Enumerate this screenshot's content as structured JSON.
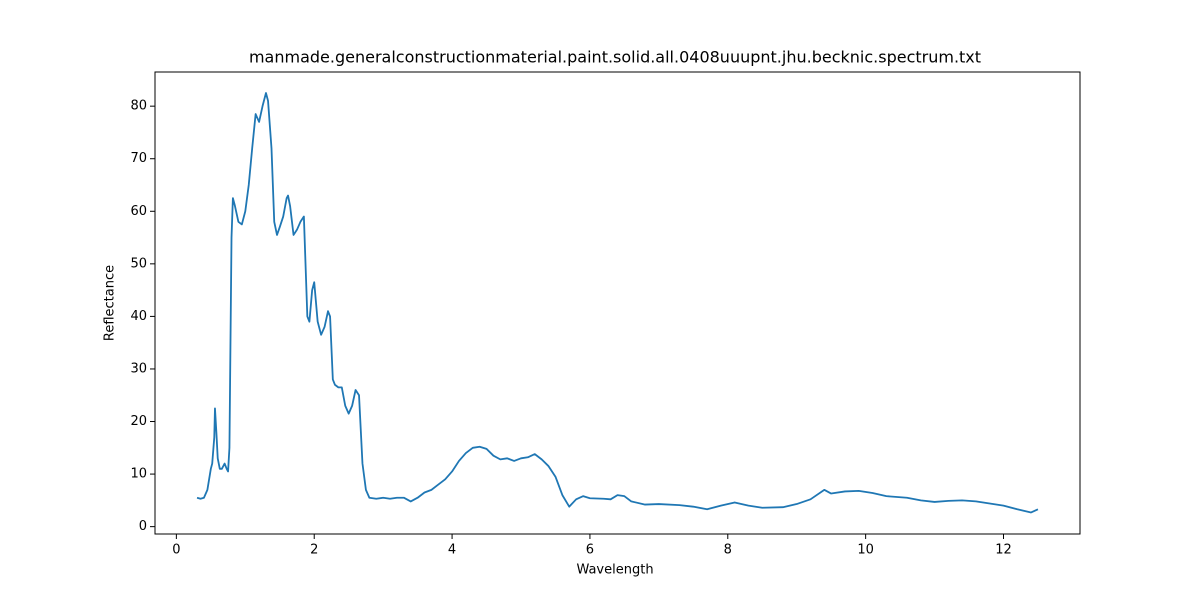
{
  "chart_data": {
    "type": "line",
    "title": "manmade.generalconstructionmaterial.paint.solid.all.0408uuupnt.jhu.becknic.spectrum.txt",
    "xlabel": "Wavelength",
    "ylabel": "Reflectance",
    "x": [
      0.3,
      0.35,
      0.4,
      0.45,
      0.5,
      0.52,
      0.55,
      0.56,
      0.58,
      0.6,
      0.63,
      0.66,
      0.7,
      0.73,
      0.75,
      0.77,
      0.8,
      0.82,
      0.85,
      0.9,
      0.95,
      1.0,
      1.05,
      1.1,
      1.15,
      1.2,
      1.25,
      1.3,
      1.33,
      1.38,
      1.42,
      1.46,
      1.5,
      1.55,
      1.6,
      1.62,
      1.65,
      1.7,
      1.75,
      1.8,
      1.85,
      1.9,
      1.93,
      1.97,
      2.0,
      2.05,
      2.1,
      2.15,
      2.2,
      2.23,
      2.27,
      2.3,
      2.35,
      2.4,
      2.45,
      2.5,
      2.55,
      2.6,
      2.65,
      2.7,
      2.75,
      2.8,
      2.9,
      3.0,
      3.1,
      3.2,
      3.3,
      3.4,
      3.5,
      3.6,
      3.7,
      3.8,
      3.9,
      4.0,
      4.1,
      4.2,
      4.3,
      4.4,
      4.5,
      4.6,
      4.7,
      4.8,
      4.9,
      5.0,
      5.1,
      5.2,
      5.3,
      5.4,
      5.5,
      5.6,
      5.7,
      5.8,
      5.9,
      6.0,
      6.2,
      6.3,
      6.4,
      6.5,
      6.6,
      6.8,
      7.0,
      7.3,
      7.5,
      7.7,
      7.9,
      8.1,
      8.3,
      8.5,
      8.8,
      9.0,
      9.2,
      9.4,
      9.5,
      9.7,
      9.9,
      10.1,
      10.3,
      10.6,
      10.8,
      11.0,
      11.2,
      11.4,
      11.6,
      11.8,
      12.0,
      12.2,
      12.4,
      12.5
    ],
    "series": [
      {
        "name": "Reflectance",
        "color": "#1f77b4",
        "values": [
          5.5,
          5.3,
          5.5,
          7,
          11,
          12,
          17,
          22.5,
          18,
          13,
          11,
          11,
          12,
          11,
          10.5,
          15,
          55,
          62.5,
          61,
          58,
          57.5,
          60,
          65,
          72,
          78.5,
          77,
          80,
          82.5,
          81,
          72,
          58,
          55.5,
          57,
          59,
          62.5,
          63,
          61,
          55.5,
          56.5,
          58,
          59,
          40,
          39,
          45,
          46.5,
          39,
          36.5,
          38,
          41,
          40,
          28,
          27,
          26.5,
          26.5,
          23,
          21.5,
          23,
          26,
          25,
          12,
          7,
          5.5,
          5.3,
          5.5,
          5.3,
          5.5,
          5.5,
          4.8,
          5.5,
          6.5,
          7,
          8,
          9,
          10.5,
          12.5,
          14,
          15,
          15.2,
          14.8,
          13.5,
          12.8,
          13,
          12.5,
          13,
          13.2,
          13.8,
          12.8,
          11.5,
          9.5,
          6,
          3.8,
          5.2,
          5.8,
          5.4,
          5.3,
          5.2,
          6,
          5.8,
          4.8,
          4.2,
          4.3,
          4.1,
          3.8,
          3.3,
          4,
          4.6,
          4,
          3.6,
          3.7,
          4.3,
          5.2,
          7,
          6.3,
          6.7,
          6.8,
          6.4,
          5.8,
          5.5,
          5,
          4.7,
          4.9,
          5,
          4.8,
          4.4,
          4,
          3.3,
          2.7,
          3.3
        ]
      }
    ],
    "xlim": [
      -0.31,
      13.11
    ],
    "ylim": [
      -1.4,
      86.5
    ],
    "xticks": [
      0,
      2,
      4,
      6,
      8,
      10,
      12
    ],
    "yticks": [
      0,
      10,
      20,
      30,
      40,
      50,
      60,
      70,
      80
    ],
    "grid": false
  }
}
